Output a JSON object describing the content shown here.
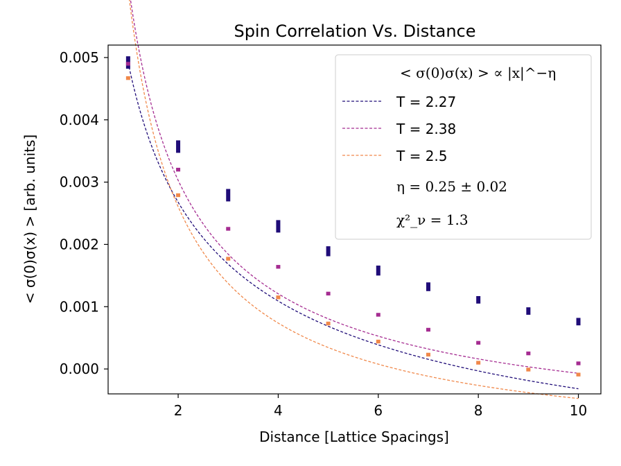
{
  "chart_data": {
    "type": "scatter",
    "title": "Spin Correlation Vs. Distance",
    "xlabel": "Distance [Lattice Spacings]",
    "ylabel": "< σ(0)σ(x) > [arb. units]",
    "xlim": [
      0.6,
      10.45
    ],
    "ylim": [
      -0.0004,
      0.0052
    ],
    "xticks": [
      2,
      4,
      6,
      8,
      10
    ],
    "xtick_labels": [
      "2",
      "4",
      "6",
      "8",
      "10"
    ],
    "yticks": [
      0.0,
      0.001,
      0.002,
      0.003,
      0.004,
      0.005
    ],
    "ytick_labels": [
      "0.000",
      "0.001",
      "0.002",
      "0.003",
      "0.004",
      "0.005"
    ],
    "grid": false,
    "legend_position": "top-right",
    "legend": {
      "header": "< σ(0)σ(x) > ∝ |x|^−η",
      "eta_text": "η = 0.25 ± 0.02",
      "chi_text": "χ²_ν = 1.3"
    },
    "x": [
      1,
      2,
      3,
      4,
      5,
      6,
      7,
      8,
      9,
      10
    ],
    "series": [
      {
        "name": "T = 2.27",
        "color": "#1f0c78",
        "values": [
          0.00492,
          0.00357,
          0.00279,
          0.00229,
          0.00189,
          0.00158,
          0.00132,
          0.00111,
          0.00093,
          0.00076
        ],
        "errors": [
          0.0001,
          0.0001,
          0.0001,
          0.0001,
          8e-05,
          8e-05,
          7e-05,
          6e-05,
          6e-05,
          6e-05
        ],
        "fit": {
          "a": 0.00492,
          "b": -0.00274,
          "p": 0.5
        }
      },
      {
        "name": "T = 2.38",
        "color": "#a52c91",
        "values": [
          0.0049,
          0.0032,
          0.00225,
          0.00164,
          0.00121,
          0.00087,
          0.00063,
          0.00042,
          0.00025,
          9e-05
        ],
        "errors": [
          3e-05,
          3e-05,
          3e-05,
          3e-05,
          3e-05,
          3e-05,
          3e-05,
          3e-05,
          3e-05,
          3e-05
        ],
        "fit": {
          "a": 0.0062,
          "b": -0.00125,
          "p": 0.8
        }
      },
      {
        "name": "T = 2.5",
        "color": "#f0884a",
        "values": [
          0.00467,
          0.00279,
          0.00177,
          0.00115,
          0.00073,
          0.00044,
          0.00023,
          0.0001,
          -1e-05,
          -9e-05
        ],
        "errors": [
          3e-05,
          3e-05,
          3e-05,
          3e-05,
          3e-05,
          3e-05,
          3e-05,
          3e-05,
          3e-05,
          3e-05
        ],
        "fit": {
          "a": 0.00609,
          "b": -0.00142,
          "p": 0.9
        }
      }
    ]
  }
}
